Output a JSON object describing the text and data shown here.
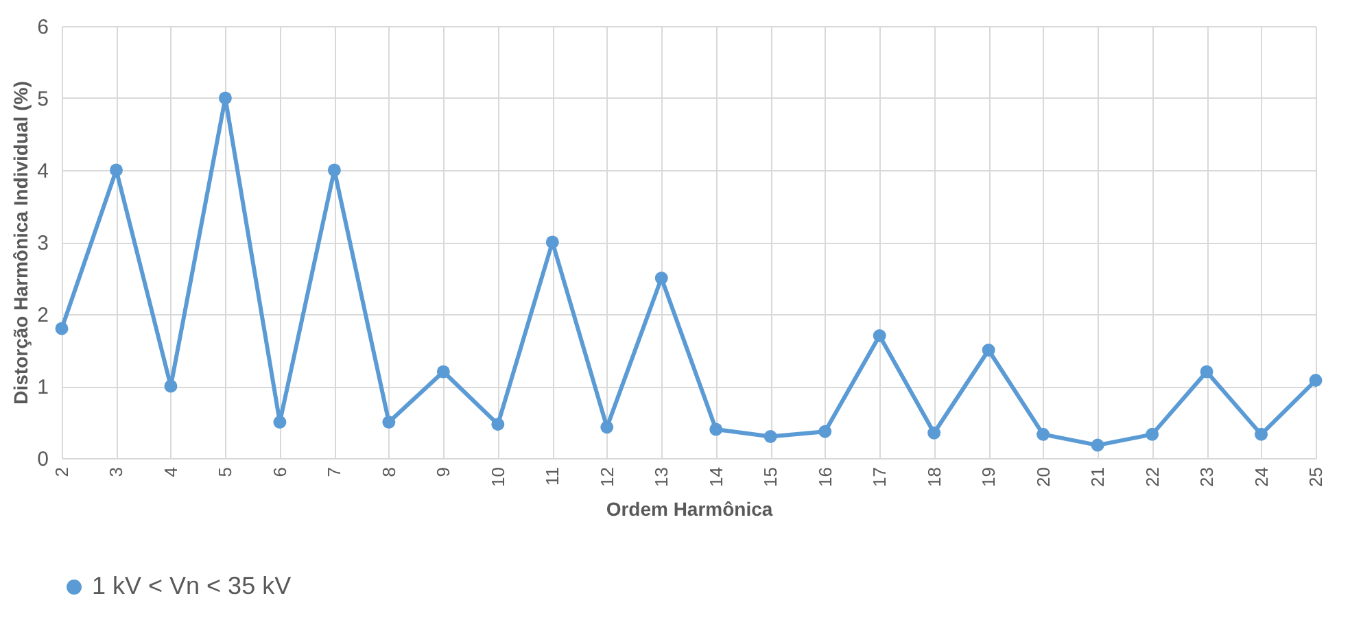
{
  "chart_data": {
    "type": "line",
    "xlabel": "Ordem Harmônica",
    "ylabel": "Distorção Harmônica Individual (%)",
    "categories": [
      "2",
      "3",
      "4",
      "5",
      "6",
      "7",
      "8",
      "9",
      "10",
      "11",
      "12",
      "13",
      "14",
      "15",
      "16",
      "17",
      "18",
      "19",
      "20",
      "21",
      "22",
      "23",
      "24",
      "25"
    ],
    "series": [
      {
        "name": "1 kV < Vn < 35 kV",
        "color": "#5b9bd5",
        "values": [
          1.8,
          4,
          1,
          5,
          0.5,
          4,
          0.5,
          1.2,
          0.47,
          3,
          0.43,
          2.5,
          0.4,
          0.3,
          0.37,
          1.7,
          0.35,
          1.5,
          0.33,
          0.18,
          0.33,
          1.2,
          0.33,
          1.08
        ]
      }
    ],
    "ylim": [
      0,
      6
    ],
    "yticks": [
      0,
      1,
      2,
      3,
      4,
      5,
      6
    ],
    "grid": true,
    "legend": "bottom",
    "marker": "circle",
    "line_style": "solid"
  }
}
